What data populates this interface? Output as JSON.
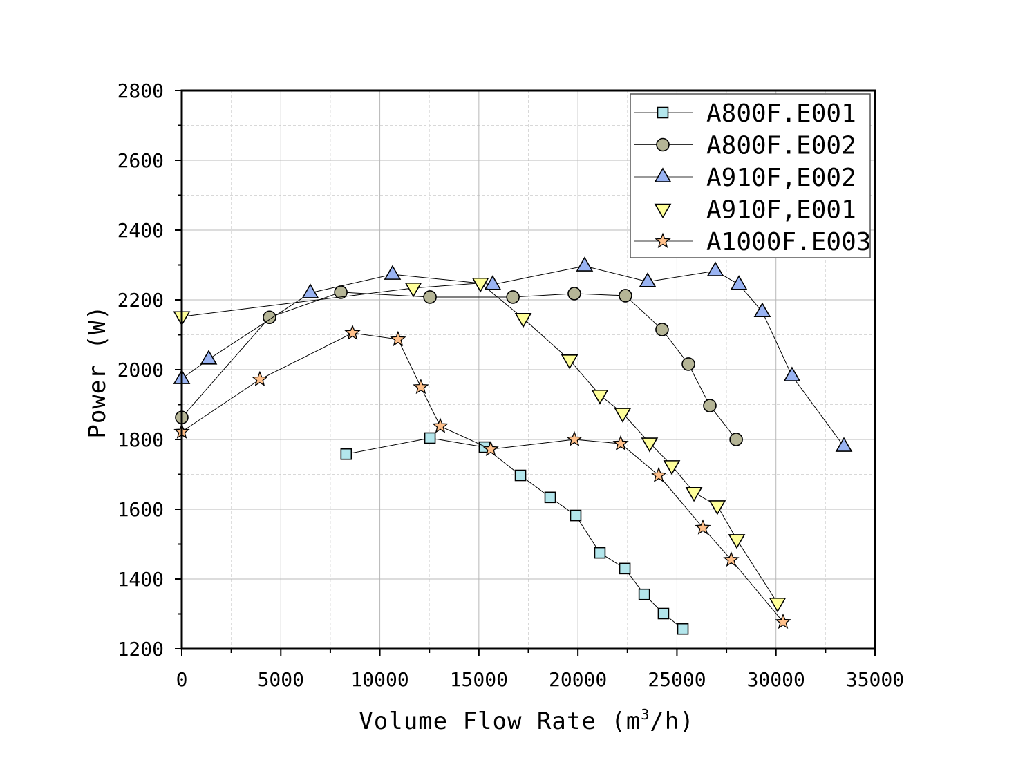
{
  "chart_data": {
    "type": "line",
    "title": "",
    "xlabel": "Volume Flow Rate (m",
    "xlabel_sup": "3",
    "xlabel_end": "/h)",
    "ylabel": "Power (W)",
    "xlim": [
      0,
      35000
    ],
    "ylim": [
      1200,
      2800
    ],
    "xticks": [
      0,
      5000,
      10000,
      15000,
      20000,
      25000,
      30000,
      35000
    ],
    "yticks": [
      1200,
      1400,
      1600,
      1800,
      2000,
      2200,
      2400,
      2600,
      2800
    ],
    "grid": true,
    "legend_position": "top-right",
    "series": [
      {
        "name": "A800F.E001",
        "marker": "square",
        "color": "#b3e6ec",
        "x": [
          8300,
          12530,
          15280,
          17100,
          18600,
          19890,
          21110,
          22370,
          23350,
          24320,
          25300
        ],
        "y": [
          1758,
          1804,
          1778,
          1697,
          1634,
          1582,
          1475,
          1430,
          1356,
          1301,
          1257
        ]
      },
      {
        "name": "A800F.E002",
        "marker": "circle",
        "color": "#b5b596",
        "x": [
          0,
          4430,
          8030,
          12530,
          16720,
          19820,
          22400,
          24250,
          25580,
          26660,
          27990
        ],
        "y": [
          1863,
          2150,
          2222,
          2208,
          2208,
          2218,
          2212,
          2115,
          2016,
          1897,
          1800
        ]
      },
      {
        "name": "A910F,E002",
        "marker": "triangle-up",
        "color": "#99b3f2",
        "x": [
          0,
          1360,
          6490,
          10640,
          15700,
          20340,
          23520,
          26940,
          28130,
          29310,
          30810,
          33430
        ],
        "y": [
          1974,
          2030,
          2220,
          2273,
          2244,
          2297,
          2252,
          2283,
          2244,
          2166,
          1982,
          1780
        ]
      },
      {
        "name": "A910F,E001",
        "marker": "triangle-down",
        "color": "#ffff99",
        "x": [
          0,
          11690,
          15080,
          17240,
          19580,
          21110,
          22260,
          23620,
          24740,
          25860,
          27040,
          28020,
          30080
        ],
        "y": [
          2152,
          2234,
          2248,
          2147,
          2028,
          1927,
          1875,
          1790,
          1725,
          1648,
          1610,
          1513,
          1331
        ]
      },
      {
        "name": "A1000F.E003",
        "marker": "star",
        "color": "#ffc08a",
        "x": [
          0,
          3940,
          8620,
          10920,
          12070,
          13050,
          15600,
          19820,
          22160,
          24080,
          26310,
          27740,
          30360
        ],
        "y": [
          1822,
          1972,
          2105,
          2087,
          1950,
          1838,
          1772,
          1800,
          1788,
          1697,
          1547,
          1455,
          1277
        ]
      }
    ]
  }
}
